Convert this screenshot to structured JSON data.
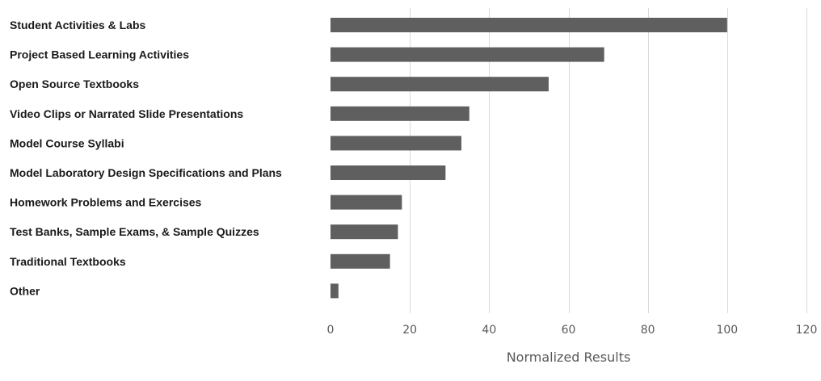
{
  "chart_data": {
    "type": "bar",
    "orientation": "horizontal",
    "title": "",
    "xlabel": "Normalized Results",
    "ylabel": "",
    "xlim": [
      0,
      120
    ],
    "x_ticks": [
      0,
      20,
      40,
      60,
      80,
      100,
      120
    ],
    "grid": "vertical",
    "legend": "none",
    "bar_color": "#5f5f5f",
    "categories": [
      "Student Activities & Labs",
      "Project Based Learning Activities",
      "Open Source Textbooks",
      "Video Clips or Narrated Slide Presentations",
      "Model Course Syllabi",
      "Model Laboratory Design Specifications and Plans",
      "Homework Problems and Exercises",
      "Test Banks, Sample Exams, & Sample Quizzes",
      "Traditional Textbooks",
      "Other"
    ],
    "values": [
      100,
      69,
      55,
      35,
      33,
      29,
      18,
      17,
      15,
      2
    ]
  }
}
